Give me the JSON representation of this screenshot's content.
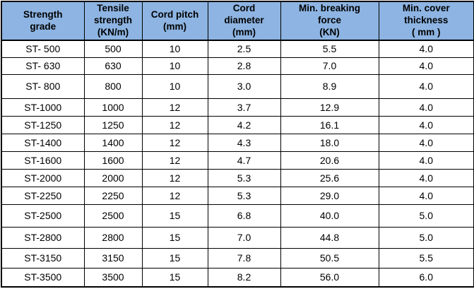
{
  "colors": {
    "header_bg": "#8DB4E2",
    "border": "#000000",
    "text": "#000000"
  },
  "table": {
    "name": "conveyor-belt-strength-grade-specifications",
    "headers": [
      {
        "key": "strength-grade",
        "label": "Strength\ngrade"
      },
      {
        "key": "tensile-strength",
        "label": "Tensile\nstrength\n(KN/m)"
      },
      {
        "key": "cord-pitch",
        "label": "Cord pitch\n(mm)"
      },
      {
        "key": "cord-diameter",
        "label": "Cord\ndiameter\n(mm)"
      },
      {
        "key": "min-breaking-force",
        "label": "Min. breaking\nforce\n(KN)"
      },
      {
        "key": "min-cover-thickness",
        "label": "Min. cover\nthickness\n( mm )"
      }
    ],
    "rows": [
      {
        "cells": [
          "ST- 500",
          "500",
          "10",
          "2.5",
          "5.5",
          "4.0"
        ]
      },
      {
        "cells": [
          "ST- 630",
          "630",
          "10",
          "2.8",
          "7.0",
          "4.0"
        ]
      },
      {
        "cells": [
          "ST- 800",
          "800",
          "10",
          "3.0",
          "8.9",
          "4.0"
        ]
      },
      {
        "cells": [
          "ST-1000",
          "1000",
          "12",
          "3.7",
          "12.9",
          "4.0"
        ]
      },
      {
        "cells": [
          "ST-1250",
          "1250",
          "12",
          "4.2",
          "16.1",
          "4.0"
        ]
      },
      {
        "cells": [
          "ST-1400",
          "1400",
          "12",
          "4.3",
          "18.0",
          "4.0"
        ]
      },
      {
        "cells": [
          "ST-1600",
          "1600",
          "12",
          "4.7",
          "20.6",
          "4.0"
        ]
      },
      {
        "cells": [
          "ST-2000",
          "2000",
          "12",
          "5.3",
          "25.6",
          "4.0"
        ]
      },
      {
        "cells": [
          "ST-2250",
          "2250",
          "12",
          "5.3",
          "29.0",
          "4.0"
        ]
      },
      {
        "cells": [
          "ST-2500",
          "2500",
          "15",
          "6.8",
          "40.0",
          "5.0"
        ]
      },
      {
        "cells": [
          "ST-2800",
          "2800",
          "15",
          "7.0",
          "44.8",
          "5.0"
        ]
      },
      {
        "cells": [
          "ST-3150",
          "3150",
          "15",
          "7.8",
          "50.5",
          "5.5"
        ]
      },
      {
        "cells": [
          "ST-3500",
          "3500",
          "15",
          "8.2",
          "56.0",
          "6.0"
        ]
      }
    ]
  }
}
